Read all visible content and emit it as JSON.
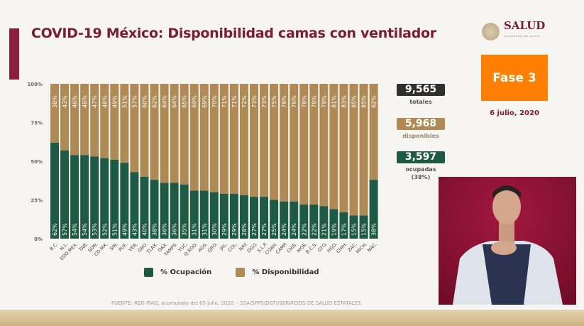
{
  "header": {
    "title": "COVID-19 México: Disponibilidad camas con ventilador"
  },
  "logo": {
    "text": "SALUD",
    "subtext": "SECRETARÍA DE SALUD"
  },
  "phase": {
    "label": "Fase 3",
    "color": "#ff7f00"
  },
  "date": "6 julio, 2020",
  "stats": [
    {
      "value": "9,565",
      "label": "totales",
      "color": "#2f2f2f"
    },
    {
      "value": "5,968",
      "label": "disponibles",
      "color": "#b08a55"
    },
    {
      "value": "3,597",
      "label": "ocupadas (38%)",
      "color": "#1d5a45"
    }
  ],
  "source": "FUENTE: RED IRAG, acumulado del 05 julio, 2020. -  SSA/SPPS/DGTI/SERVICIOS DE SALUD ESTATALES",
  "chart_data": {
    "type": "bar",
    "stacked": true,
    "title": "COVID-19 México: Disponibilidad camas con ventilador",
    "categories": [
      "B.C.",
      "N.L.",
      "EDO.MEX.",
      "TAB.",
      "SON.",
      "CD.MX.",
      "SIN.",
      "PUE.",
      "VER.",
      "GRO.",
      "TLAX.",
      "OAX.",
      "TAMPS.",
      "YUC.",
      "Q.ROO.",
      "AGS.",
      "QRO.",
      "JAL.",
      "COL.",
      "NAY.",
      "DGO.",
      "S.L.P.",
      "COAH.",
      "CAMP.",
      "CHIS.",
      "MOR.",
      "B.C.S.",
      "GTO.",
      "HGO.",
      "CHIH.",
      "ZAC.",
      "MICH.",
      "NAC."
    ],
    "series": [
      {
        "name": "% Ocupación",
        "color": "#1d5a45",
        "values": [
          62,
          57,
          54,
          54,
          53,
          52,
          51,
          49,
          43,
          40,
          38,
          36,
          36,
          35,
          31,
          31,
          30,
          29,
          29,
          28,
          27,
          27,
          25,
          24,
          24,
          22,
          22,
          21,
          19,
          17,
          15,
          15,
          38
        ]
      },
      {
        "name": "% Disponibilidad",
        "color": "#b08a55",
        "values": [
          38,
          43,
          46,
          46,
          47,
          48,
          49,
          51,
          57,
          60,
          62,
          64,
          64,
          65,
          69,
          69,
          70,
          71,
          71,
          72,
          73,
          73,
          75,
          76,
          76,
          78,
          78,
          79,
          81,
          83,
          85,
          85,
          62
        ]
      }
    ],
    "yticks": [
      "0%",
      "25%",
      "50%",
      "75%",
      "100%"
    ],
    "ylim": [
      0,
      100
    ],
    "legend": "bottom",
    "grid": false
  }
}
